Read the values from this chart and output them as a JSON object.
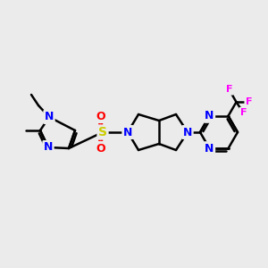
{
  "background_color": "#ebebeb",
  "bond_color": "#000000",
  "bond_width": 1.8,
  "atom_colors": {
    "N": "#0000ff",
    "S": "#cccc00",
    "O": "#ff0000",
    "F": "#ff00ff",
    "C": "#000000"
  },
  "font_size_atom": 9,
  "fig_width": 3.0,
  "fig_height": 3.0,
  "dpi": 100
}
